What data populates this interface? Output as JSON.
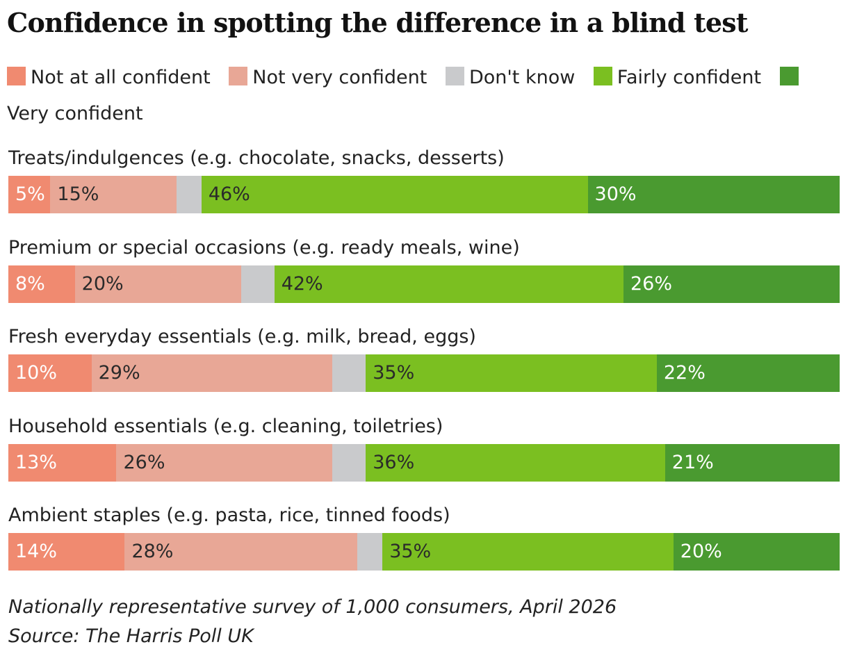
{
  "title": "Confidence in spotting the difference in a blind test",
  "legend": [
    {
      "label": "Not at all confident",
      "color": "#f08a70"
    },
    {
      "label": "Not very confident",
      "color": "#e8a796"
    },
    {
      "label": "Don't know",
      "color": "#c9cacc"
    },
    {
      "label": "Fairly confident",
      "color": "#7bbf21"
    },
    {
      "label": "Very confident",
      "color": "#4a9a30"
    }
  ],
  "chart_data": {
    "type": "bar",
    "orientation": "horizontal",
    "stacked": true,
    "title": "Confidence in spotting the difference in a blind test",
    "categories": [
      "Treats/indulgences (e.g. chocolate, snacks, desserts)",
      "Premium or special occasions (e.g. ready meals, wine)",
      "Fresh everyday essentials (e.g. milk, bread, eggs)",
      "Household essentials (e.g. cleaning, toiletries)",
      "Ambient staples (e.g. pasta, rice, tinned foods)"
    ],
    "series": [
      {
        "name": "Not at all confident",
        "values": [
          5,
          8,
          10,
          13,
          14
        ],
        "labels": [
          "5%",
          "8%",
          "10%",
          "13%",
          "14%"
        ]
      },
      {
        "name": "Not very confident",
        "values": [
          15,
          20,
          29,
          26,
          28
        ],
        "labels": [
          "15%",
          "20%",
          "29%",
          "26%",
          "28%"
        ]
      },
      {
        "name": "Don't know",
        "values": [
          3,
          4,
          4,
          4,
          3
        ],
        "labels": [
          "",
          "",
          "",
          "",
          ""
        ]
      },
      {
        "name": "Fairly confident",
        "values": [
          46,
          42,
          35,
          36,
          35
        ],
        "labels": [
          "46%",
          "42%",
          "35%",
          "36%",
          "35%"
        ]
      },
      {
        "name": "Very confident",
        "values": [
          30,
          26,
          22,
          21,
          20
        ],
        "labels": [
          "30%",
          "26%",
          "22%",
          "21%",
          "20%"
        ]
      }
    ],
    "xlim": [
      0,
      100
    ],
    "grid": false,
    "legend_position": "top"
  },
  "notes": {
    "survey": "Nationally representative survey of 1,000 consumers, April 2026",
    "source": "Source: The Harris Poll UK"
  }
}
